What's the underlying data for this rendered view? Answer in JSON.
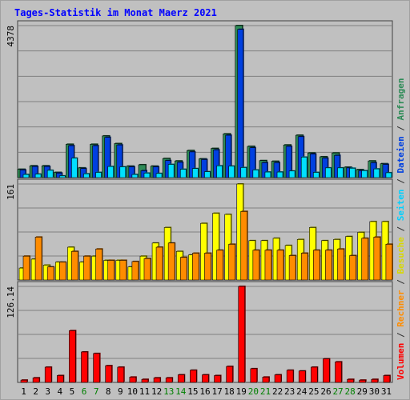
{
  "title": "Tages-Statistik im Monat Maerz 2021",
  "colors": {
    "background": "#c0c0c0",
    "title": "#0000ff",
    "anfragen": "#2e8b57",
    "dateien": "#0040e0",
    "seiten": "#00e0ff",
    "besuche": "#ffff00",
    "rechner": "#ff8c00",
    "volumen": "#ff0000",
    "weekend_label": "#008000"
  },
  "legend": {
    "anfragen": "Anfragen",
    "sep1": " / ",
    "dateien": "Dateien",
    "sep2": " / ",
    "seiten": "Seiten",
    "sep3": " / ",
    "besuche": "Besuche",
    "sep4": " / ",
    "rechner": "Rechner",
    "sep5": " / ",
    "volumen": "Volumen"
  },
  "chart_data": [
    {
      "type": "bar",
      "panel": "top",
      "ymax_label": "4378",
      "ylim": [
        0,
        4378
      ],
      "categories": [
        "1",
        "2",
        "3",
        "4",
        "5",
        "6",
        "7",
        "8",
        "9",
        "10",
        "11",
        "12",
        "13",
        "14",
        "15",
        "16",
        "17",
        "18",
        "19",
        "20",
        "21",
        "22",
        "23",
        "24",
        "25",
        "26",
        "27",
        "28",
        "29",
        "30",
        "31"
      ],
      "series": [
        {
          "name": "Anfragen",
          "values": [
            240,
            340,
            340,
            150,
            960,
            280,
            960,
            1200,
            980,
            330,
            370,
            330,
            550,
            480,
            780,
            540,
            840,
            1260,
            4378,
            900,
            490,
            470,
            940,
            1220,
            710,
            600,
            710,
            300,
            230,
            480,
            400
          ]
        },
        {
          "name": "Dateien",
          "values": [
            220,
            320,
            320,
            130,
            920,
            260,
            920,
            1160,
            940,
            310,
            200,
            310,
            490,
            440,
            740,
            520,
            800,
            1220,
            4270,
            860,
            430,
            430,
            900,
            1180,
            680,
            560,
            640,
            280,
            200,
            430,
            380
          ]
        },
        {
          "name": "Seiten",
          "values": [
            90,
            100,
            210,
            50,
            560,
            110,
            150,
            320,
            310,
            90,
            130,
            120,
            380,
            240,
            260,
            170,
            340,
            330,
            290,
            220,
            160,
            160,
            190,
            590,
            150,
            280,
            280,
            270,
            200,
            250,
            140
          ]
        }
      ]
    },
    {
      "type": "bar",
      "panel": "middle",
      "ymax_label": "161",
      "ylim": [
        0,
        161
      ],
      "categories": [
        "1",
        "2",
        "3",
        "4",
        "5",
        "6",
        "7",
        "8",
        "9",
        "10",
        "11",
        "12",
        "13",
        "14",
        "15",
        "16",
        "17",
        "18",
        "19",
        "20",
        "21",
        "22",
        "23",
        "24",
        "25",
        "26",
        "27",
        "28",
        "29",
        "30",
        "31"
      ],
      "series": [
        {
          "name": "Besuche",
          "values": [
            20,
            35,
            25,
            30,
            55,
            30,
            40,
            33,
            33,
            22,
            40,
            62,
            88,
            48,
            42,
            95,
            112,
            110,
            161,
            66,
            66,
            70,
            58,
            68,
            88,
            66,
            68,
            73,
            80,
            98,
            98
          ]
        },
        {
          "name": "Rechner",
          "values": [
            40,
            72,
            22,
            30,
            48,
            40,
            52,
            33,
            33,
            31,
            36,
            55,
            62,
            38,
            45,
            45,
            50,
            60,
            115,
            50,
            50,
            50,
            41,
            45,
            50,
            50,
            52,
            41,
            70,
            72,
            60
          ]
        }
      ]
    },
    {
      "type": "bar",
      "panel": "bottom",
      "ymax_label": "126.14",
      "ylim": [
        0,
        126.14
      ],
      "categories": [
        "1",
        "2",
        "3",
        "4",
        "5",
        "6",
        "7",
        "8",
        "9",
        "10",
        "11",
        "12",
        "13",
        "14",
        "15",
        "16",
        "17",
        "18",
        "19",
        "20",
        "21",
        "22",
        "23",
        "24",
        "25",
        "26",
        "27",
        "28",
        "29",
        "30",
        "31"
      ],
      "series": [
        {
          "name": "Volumen",
          "values": [
            3,
            6,
            20,
            9,
            68,
            40,
            38,
            22,
            20,
            7,
            4,
            6,
            6,
            10,
            16,
            10,
            9,
            21,
            126.14,
            18,
            7,
            10,
            16,
            15,
            20,
            31,
            27,
            4,
            3,
            4,
            9
          ]
        }
      ]
    }
  ],
  "x_axis": {
    "labels": [
      "1",
      "2",
      "3",
      "4",
      "5",
      "6",
      "7",
      "8",
      "9",
      "10",
      "11",
      "12",
      "13",
      "14",
      "15",
      "16",
      "17",
      "18",
      "19",
      "20",
      "21",
      "22",
      "23",
      "24",
      "25",
      "26",
      "27",
      "28",
      "29",
      "30",
      "31"
    ],
    "weekend": [
      false,
      false,
      false,
      false,
      false,
      true,
      true,
      false,
      false,
      false,
      false,
      false,
      true,
      true,
      false,
      false,
      false,
      false,
      false,
      true,
      true,
      false,
      false,
      false,
      false,
      false,
      true,
      true,
      false,
      false,
      false
    ]
  }
}
